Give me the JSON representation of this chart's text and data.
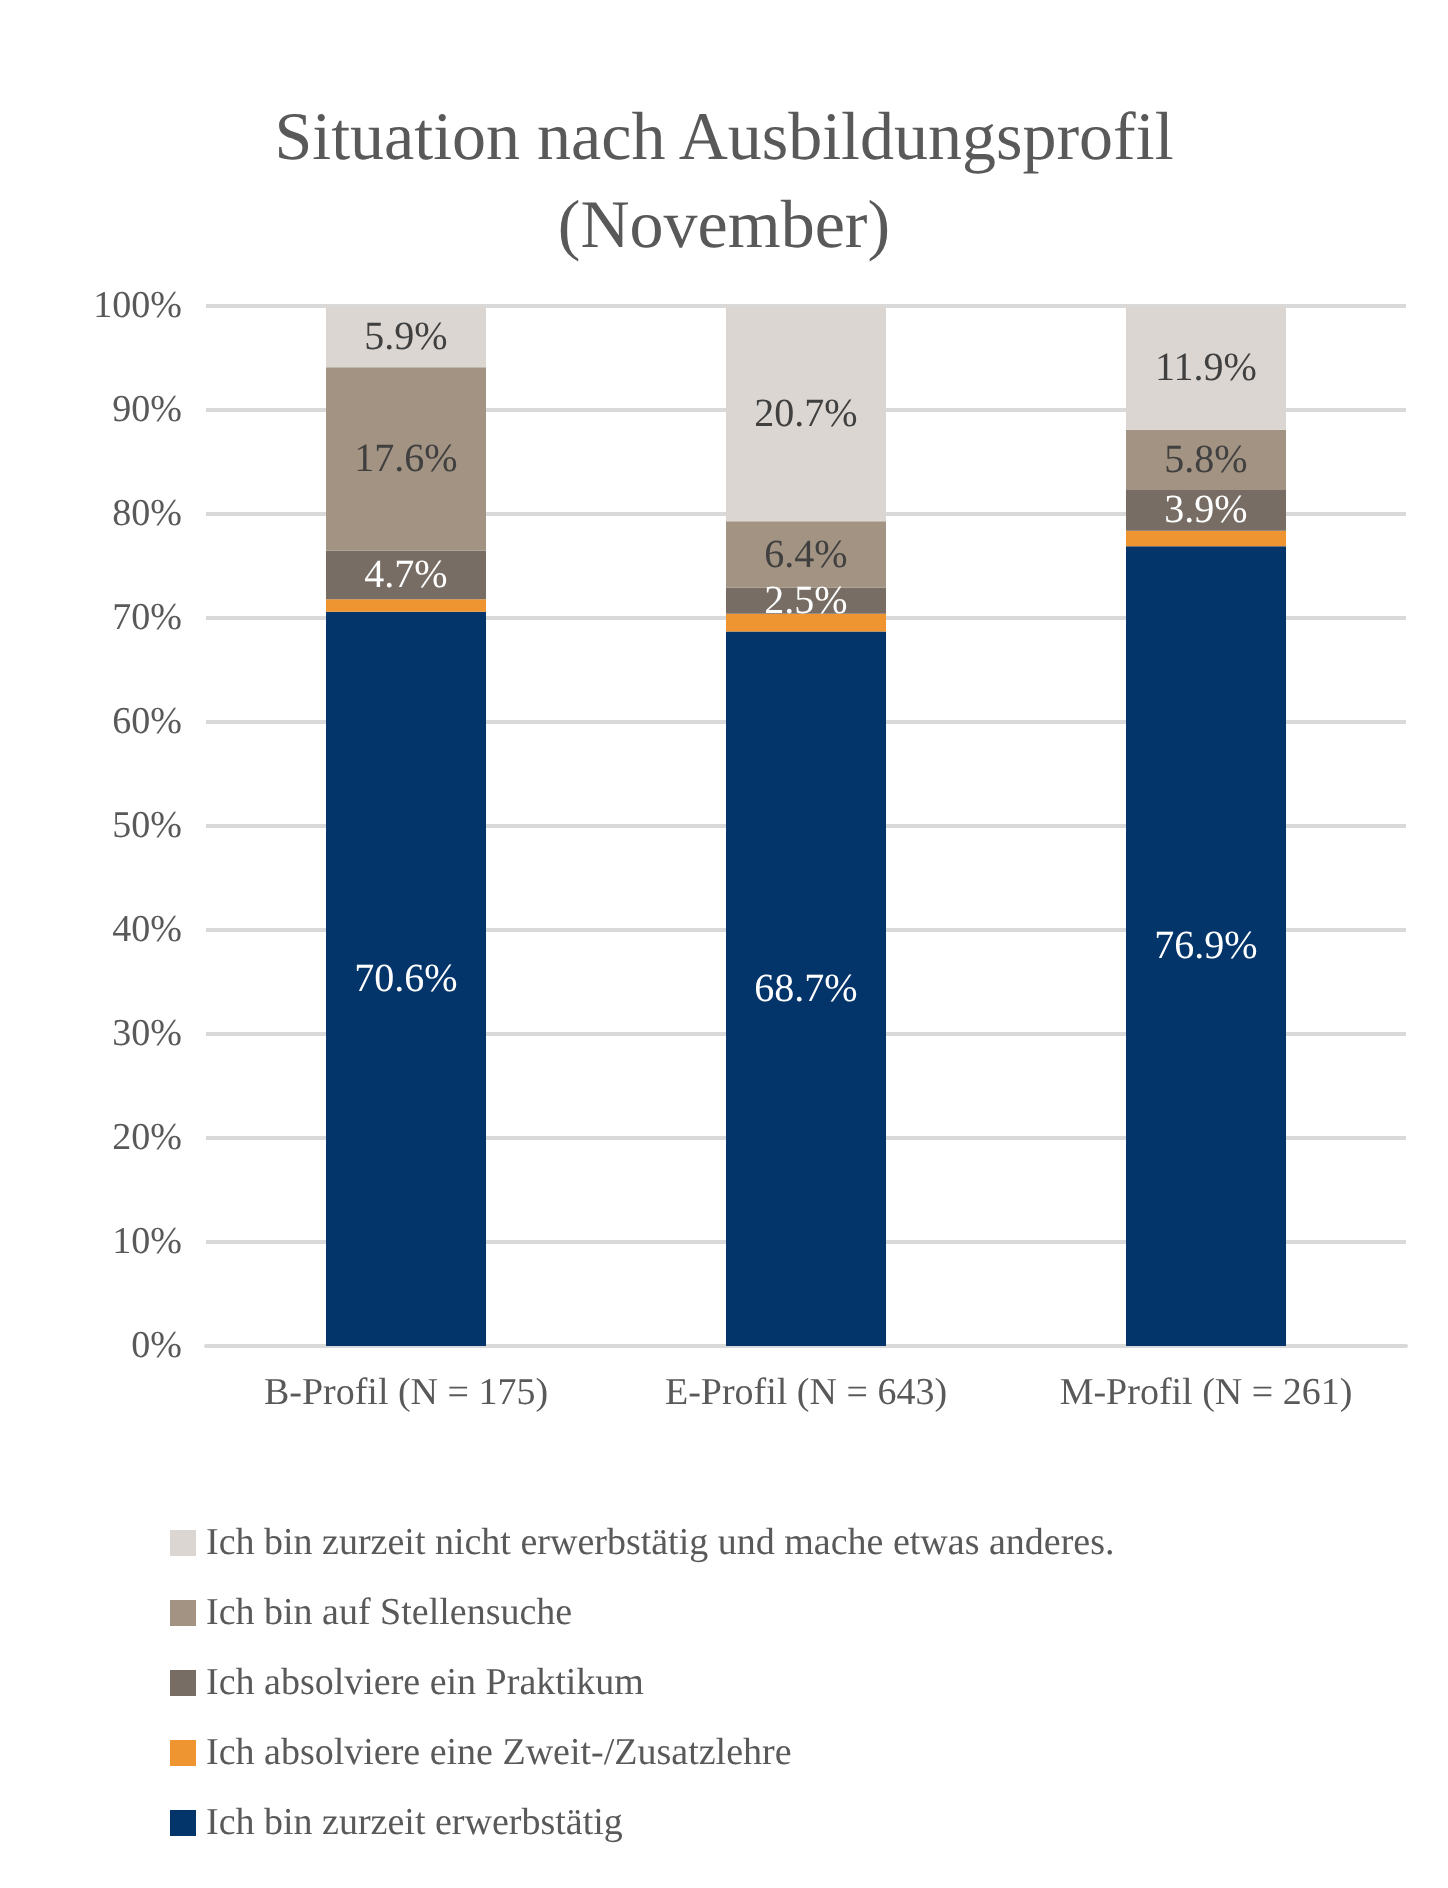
{
  "chart_data": {
    "type": "bar",
    "title": "Situation nach Ausbildungsprofil\n(November)",
    "stacked": true,
    "categories": [
      "B-Profil (N = 175)",
      "E-Profil (N = 643)",
      "M-Profil (N = 261)"
    ],
    "series": [
      {
        "name": "Ich bin zurzeit erwerbstätig",
        "color": "#03356b",
        "values": [
          70.6,
          68.7,
          76.9
        ],
        "value_labels": [
          "70.6%",
          "68.7%",
          "76.9%"
        ]
      },
      {
        "name": "Ich absolviere eine Zweit-/Zusatzlehre",
        "color": "#ee9430",
        "values": [
          1.2,
          1.7,
          1.5
        ],
        "value_labels": [
          null,
          null,
          null
        ]
      },
      {
        "name": "Ich absolviere ein Praktikum",
        "color": "#776d64",
        "values": [
          4.7,
          2.5,
          3.9
        ],
        "value_labels": [
          "4.7%",
          "2.5%",
          "3.9%"
        ]
      },
      {
        "name": "Ich bin auf Stellensuche",
        "color": "#a29382",
        "values": [
          17.6,
          6.4,
          5.8
        ],
        "value_labels": [
          "17.6%",
          "6.4%",
          "5.8%"
        ]
      },
      {
        "name": "Ich bin zurzeit nicht erwerbstätig und mache etwas anderes.",
        "color": "#dbd6d2",
        "values": [
          5.9,
          20.7,
          11.9
        ],
        "value_labels": [
          "5.9%",
          "20.7%",
          "11.9%"
        ]
      }
    ],
    "ylim": [
      0,
      100
    ],
    "yticks": [
      {
        "value": 0,
        "label": "0%"
      },
      {
        "value": 10,
        "label": "10%"
      },
      {
        "value": 20,
        "label": "20%"
      },
      {
        "value": 30,
        "label": "30%"
      },
      {
        "value": 40,
        "label": "40%"
      },
      {
        "value": 50,
        "label": "50%"
      },
      {
        "value": 60,
        "label": "60%"
      },
      {
        "value": 70,
        "label": "70%"
      },
      {
        "value": 80,
        "label": "80%"
      },
      {
        "value": 90,
        "label": "90%"
      },
      {
        "value": 100,
        "label": "100%"
      }
    ],
    "grid": "y",
    "legend": "bottom"
  }
}
